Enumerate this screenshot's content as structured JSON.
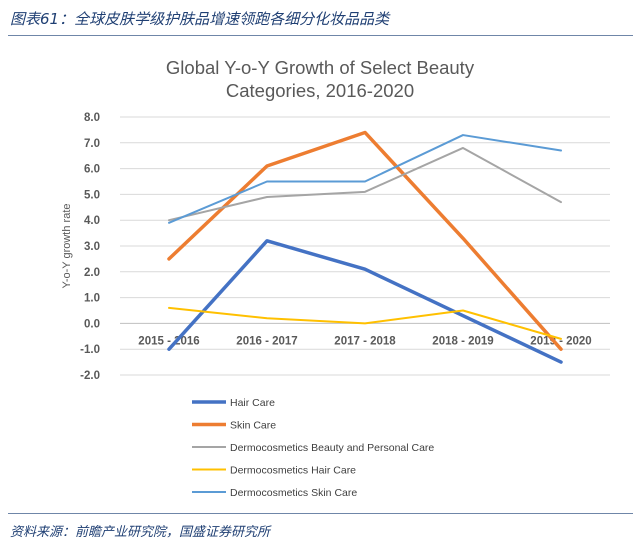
{
  "caption": "图表61：全球皮肤学级护肤品增速领跑各细分化妆品品类",
  "source": "资料来源：前瞻产业研究院，国盛证券研究所",
  "chart_data": {
    "type": "line",
    "title_lines": [
      "Global Y-o-Y Growth of Select Beauty",
      "Categories, 2016-2020"
    ],
    "xlabel": "",
    "ylabel": "Y-o-Y growth rate",
    "ylim": [
      -2.0,
      8.0
    ],
    "yticks": [
      "8.0",
      "7.0",
      "6.0",
      "5.0",
      "4.0",
      "3.0",
      "2.0",
      "1.0",
      "0.0",
      "-1.0",
      "-2.0"
    ],
    "categories": [
      "2015 - 2016",
      "2016 - 2017",
      "2017 - 2018",
      "2018 - 2019",
      "2019 - 2020"
    ],
    "grid": true,
    "legend_position": "bottom",
    "series": [
      {
        "name": "Hair Care",
        "color": "#4472c4",
        "values": [
          -1.0,
          3.2,
          2.1,
          0.3,
          -1.5
        ]
      },
      {
        "name": "Skin Care",
        "color": "#ed7d31",
        "values": [
          2.5,
          6.1,
          7.4,
          3.3,
          -1.0
        ]
      },
      {
        "name": "Dermocosmetics Beauty and Personal Care",
        "color": "#a5a5a5",
        "values": [
          4.0,
          4.9,
          5.1,
          6.8,
          4.7
        ]
      },
      {
        "name": "Dermocosmetics Hair Care",
        "color": "#ffc000",
        "values": [
          0.6,
          0.2,
          0.0,
          0.5,
          -0.6
        ]
      },
      {
        "name": "Dermocosmetics Skin Care",
        "color": "#5b9bd5",
        "values": [
          3.9,
          5.5,
          5.5,
          7.3,
          6.7
        ]
      }
    ]
  }
}
